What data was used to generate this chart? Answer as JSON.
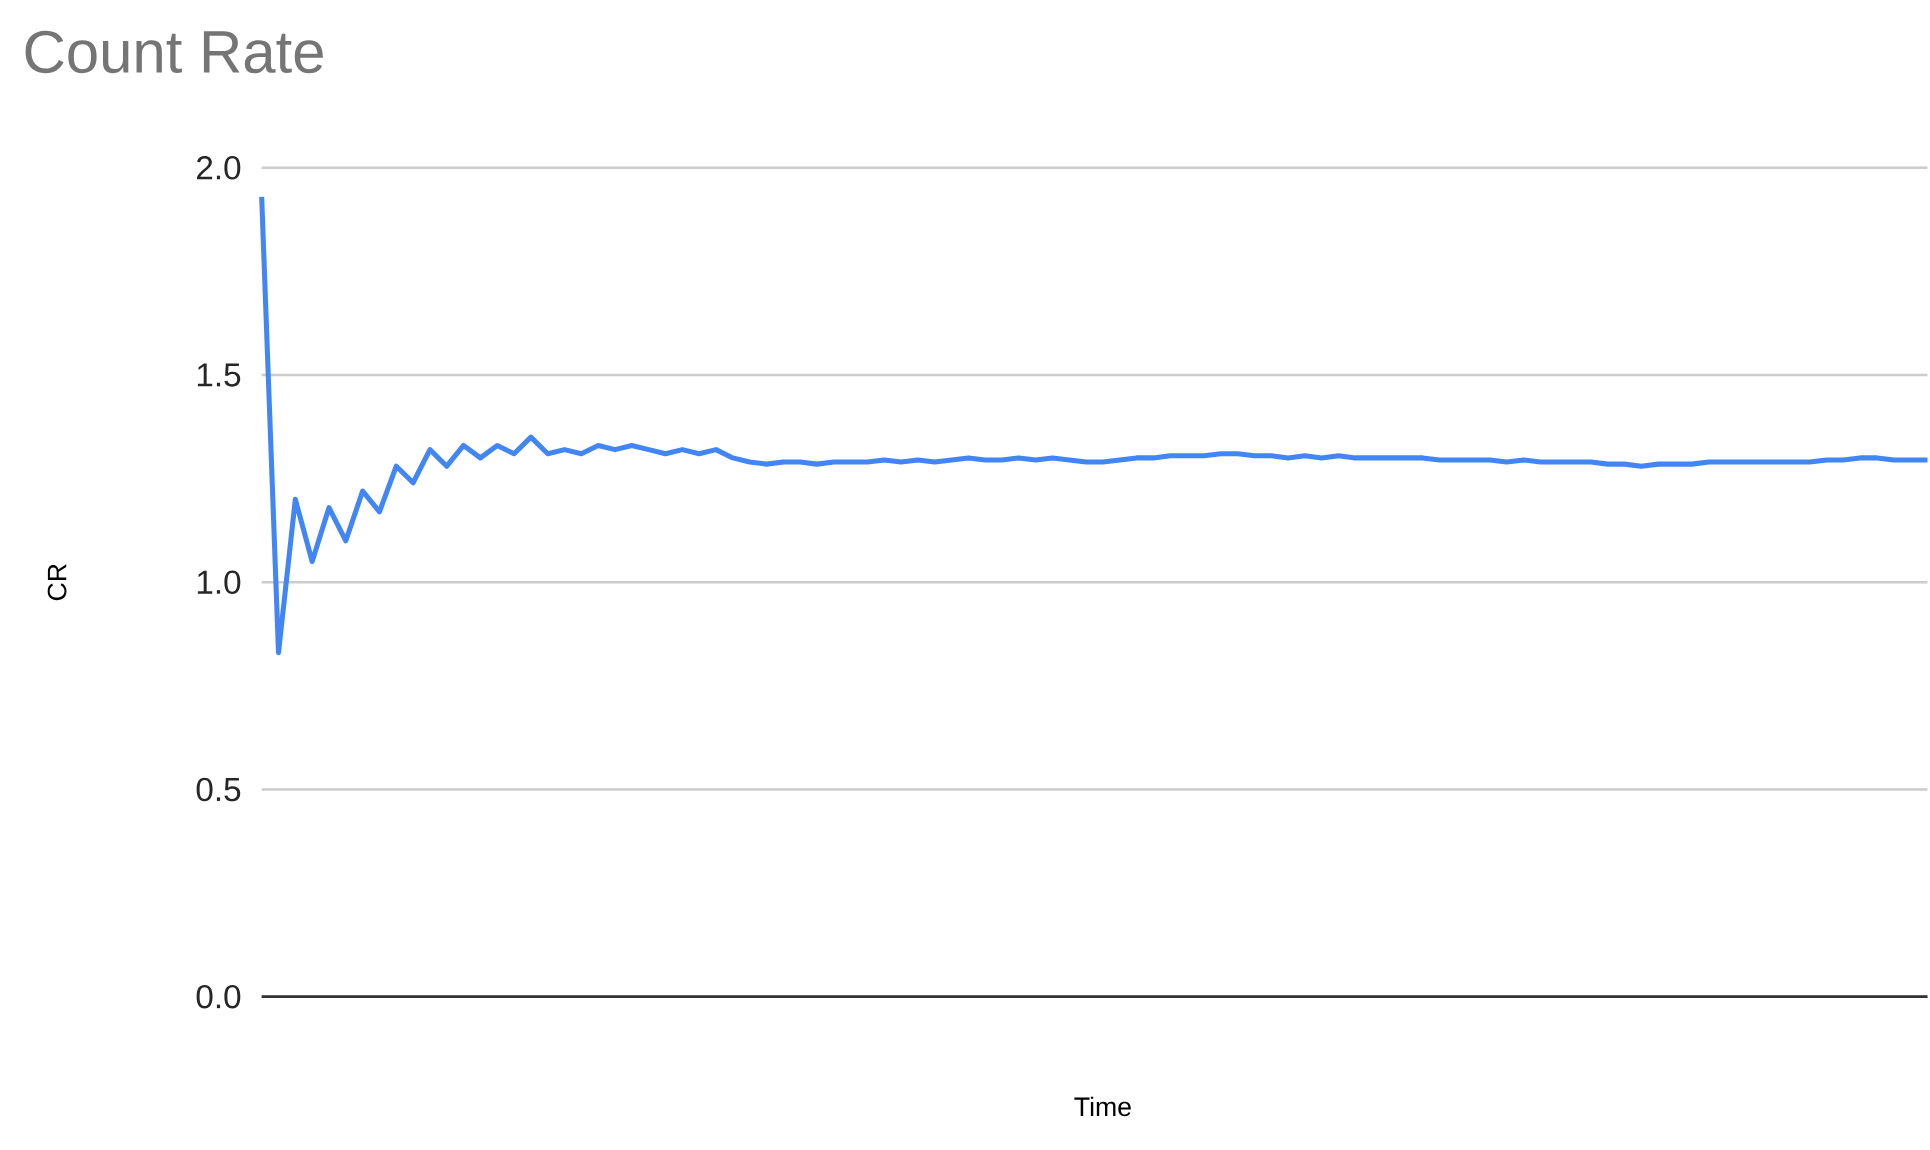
{
  "chart_data": {
    "type": "line",
    "title": "Count Rate",
    "xlabel": "Time",
    "ylabel": "CR",
    "categories": [
      null,
      null,
      null,
      null,
      null,
      null,
      null,
      null,
      null,
      null,
      null,
      null,
      null,
      null,
      null,
      null,
      null,
      null,
      null,
      null,
      null,
      null,
      null,
      null,
      null,
      null,
      null,
      null,
      null,
      null,
      null,
      null,
      null,
      null,
      null,
      null,
      null,
      null,
      null,
      null,
      null,
      null,
      null,
      null,
      null,
      null,
      null,
      null,
      null,
      null,
      null,
      null,
      null,
      null,
      null,
      null,
      null,
      null,
      null,
      null,
      null,
      null,
      null,
      null,
      null,
      null,
      null,
      null,
      null,
      null,
      null,
      null,
      null,
      null,
      null,
      null,
      null,
      null,
      null,
      null,
      null,
      null,
      null,
      null,
      null,
      null,
      null,
      null,
      null,
      null,
      null,
      null,
      null,
      null,
      null,
      null,
      null,
      null,
      null,
      null
    ],
    "series": [
      {
        "color": "#4285f4",
        "values": [
          1.93,
          0.83,
          1.2,
          1.05,
          1.18,
          1.1,
          1.22,
          1.17,
          1.28,
          1.24,
          1.32,
          1.28,
          1.33,
          1.3,
          1.33,
          1.31,
          1.35,
          1.31,
          1.32,
          1.31,
          1.33,
          1.32,
          1.33,
          1.32,
          1.31,
          1.32,
          1.31,
          1.32,
          1.3,
          1.29,
          1.285,
          1.29,
          1.29,
          1.285,
          1.29,
          1.29,
          1.29,
          1.295,
          1.29,
          1.295,
          1.29,
          1.295,
          1.3,
          1.295,
          1.295,
          1.3,
          1.295,
          1.3,
          1.295,
          1.29,
          1.29,
          1.295,
          1.3,
          1.3,
          1.305,
          1.305,
          1.305,
          1.31,
          1.31,
          1.305,
          1.305,
          1.3,
          1.305,
          1.3,
          1.305,
          1.3,
          1.3,
          1.3,
          1.3,
          1.3,
          1.295,
          1.295,
          1.295,
          1.295,
          1.29,
          1.295,
          1.29,
          1.29,
          1.29,
          1.29,
          1.285,
          1.285,
          1.28,
          1.285,
          1.285,
          1.285,
          1.29,
          1.29,
          1.29,
          1.29,
          1.29,
          1.29,
          1.29,
          1.295,
          1.295,
          1.3,
          1.3,
          1.295,
          1.295,
          1.295
        ]
      }
    ],
    "ylim": [
      0,
      2
    ],
    "yticks": [
      {
        "value": 0,
        "label": "0.0"
      },
      {
        "value": 0.5,
        "label": "0.5"
      },
      {
        "value": 1,
        "label": "1.0"
      },
      {
        "value": 1.5,
        "label": "1.5"
      },
      {
        "value": 2,
        "label": "2.0"
      }
    ],
    "grid": "y",
    "tick_labels": "y",
    "marker": "none",
    "line_style": "solid"
  }
}
